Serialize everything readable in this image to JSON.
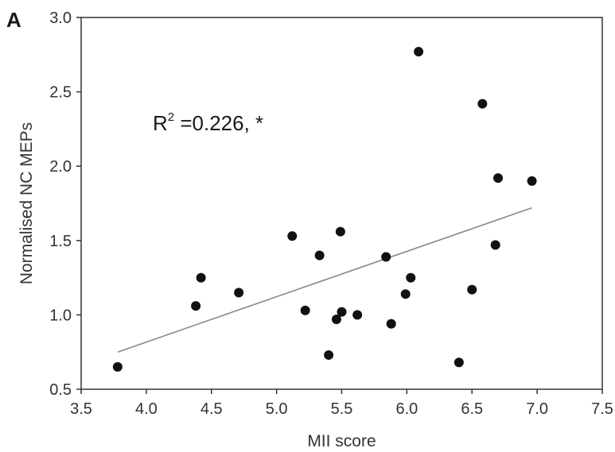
{
  "chart_data": {
    "type": "scatter",
    "panel_label": "A",
    "xlabel": "MII score",
    "ylabel": "Normalised NC MEPs",
    "xlim": [
      3.5,
      7.5
    ],
    "ylim": [
      0.5,
      3.0
    ],
    "xticks": [
      "3.5",
      "4.0",
      "4.5",
      "5.0",
      "5.5",
      "6.0",
      "6.5",
      "7.0",
      "7.5"
    ],
    "yticks": [
      "0.5",
      "1.0",
      "1.5",
      "2.0",
      "2.5",
      "3.0"
    ],
    "grid": false,
    "annotation": {
      "prefix": "R",
      "superscript": "2",
      "text": " =0.226, *"
    },
    "points": [
      {
        "x": 3.78,
        "y": 0.65
      },
      {
        "x": 4.38,
        "y": 1.06
      },
      {
        "x": 4.42,
        "y": 1.25
      },
      {
        "x": 4.71,
        "y": 1.15
      },
      {
        "x": 5.12,
        "y": 1.53
      },
      {
        "x": 5.22,
        "y": 1.03
      },
      {
        "x": 5.33,
        "y": 1.4
      },
      {
        "x": 5.4,
        "y": 0.73
      },
      {
        "x": 5.46,
        "y": 0.97
      },
      {
        "x": 5.49,
        "y": 1.56
      },
      {
        "x": 5.5,
        "y": 1.02
      },
      {
        "x": 5.62,
        "y": 1.0
      },
      {
        "x": 5.84,
        "y": 1.39
      },
      {
        "x": 5.88,
        "y": 0.94
      },
      {
        "x": 5.99,
        "y": 1.14
      },
      {
        "x": 6.03,
        "y": 1.25
      },
      {
        "x": 6.09,
        "y": 2.77
      },
      {
        "x": 6.4,
        "y": 0.68
      },
      {
        "x": 6.5,
        "y": 1.17
      },
      {
        "x": 6.58,
        "y": 2.42
      },
      {
        "x": 6.68,
        "y": 1.47
      },
      {
        "x": 6.7,
        "y": 1.92
      },
      {
        "x": 6.96,
        "y": 1.9
      }
    ],
    "trendline": {
      "x": [
        3.78,
        6.96
      ],
      "y": [
        0.75,
        1.72
      ]
    },
    "colors": {
      "points": "#111111",
      "trendline": "#888888",
      "axes": "#333333",
      "text": "#333333"
    }
  }
}
